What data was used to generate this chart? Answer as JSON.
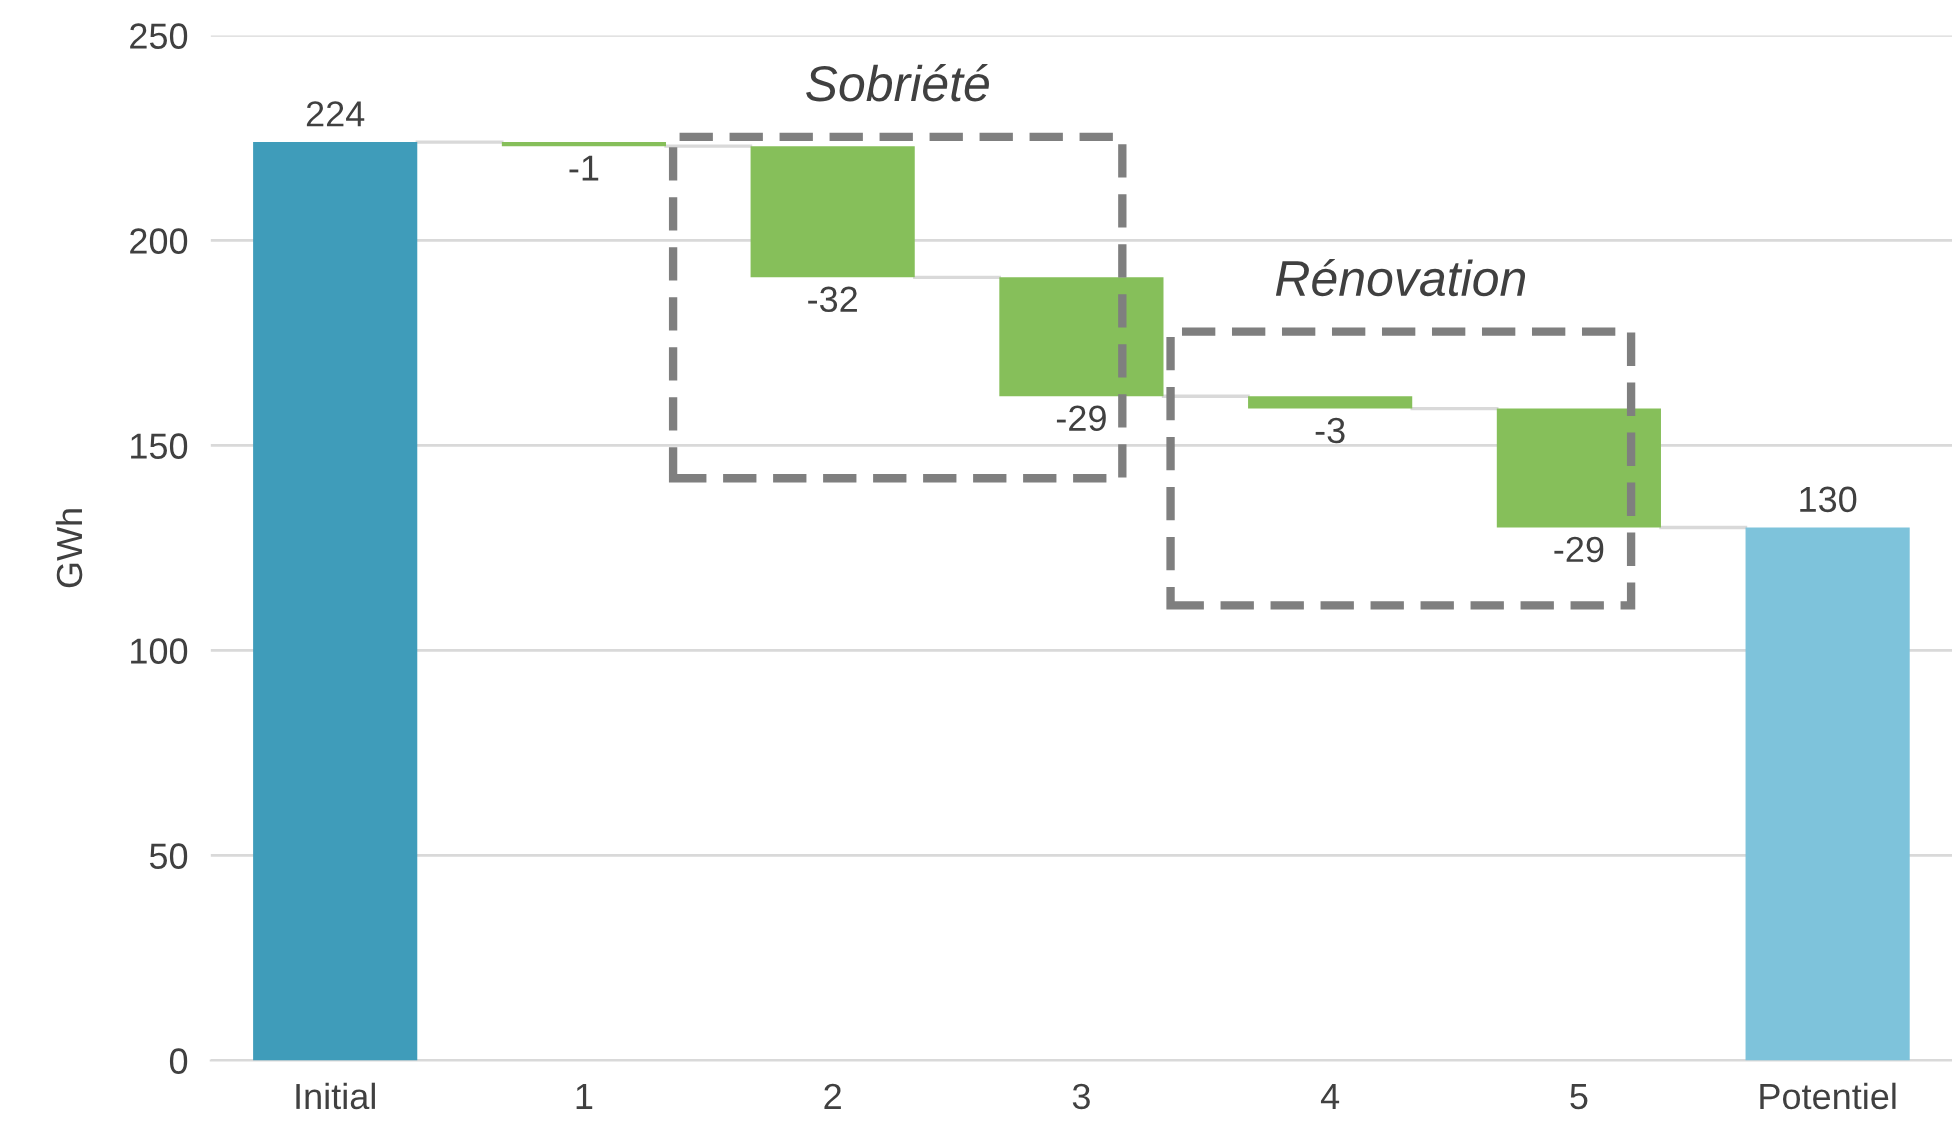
{
  "chart_data": {
    "type": "bar",
    "ylabel": "GWh",
    "categories": [
      "Initial",
      "1",
      "2",
      "3",
      "4",
      "5",
      "Potentiel"
    ],
    "values": [
      224,
      -1,
      -32,
      -29,
      -3,
      -29,
      130
    ],
    "base": [
      0,
      224,
      223,
      191,
      162,
      159,
      0
    ],
    "colors": [
      "#3f9cba",
      "#86bf5a",
      "#86bf5a",
      "#86bf5a",
      "#86bf5a",
      "#86bf5a",
      "#7ec3db"
    ],
    "ylim": [
      0,
      250
    ],
    "yticks": [
      0,
      50,
      100,
      150,
      200,
      250
    ],
    "grid": "y",
    "data_labels": true,
    "annotations": [
      "Sobriété",
      "Rénovation"
    ]
  }
}
